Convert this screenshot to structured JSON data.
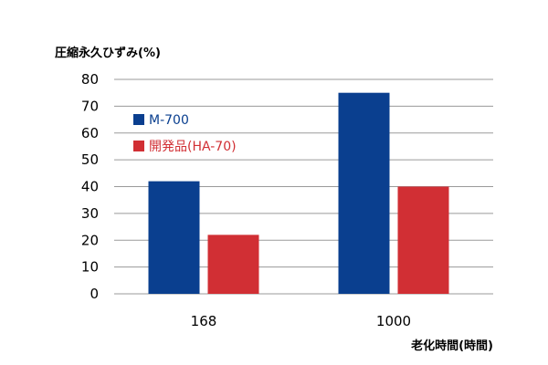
{
  "chart_data": {
    "type": "bar",
    "title": "",
    "ylabel": "圧縮永久ひずみ(%)",
    "xlabel": "老化時間(時間)",
    "categories": [
      "168",
      "1000"
    ],
    "ylim": [
      0,
      80
    ],
    "yticks": [
      0,
      10,
      20,
      30,
      40,
      50,
      60,
      70,
      80
    ],
    "grid": true,
    "legend_position": "top-left",
    "series": [
      {
        "name": "M-700",
        "color": "#0a3f8f",
        "values": [
          42,
          75
        ]
      },
      {
        "name": "開発品(HA-70)",
        "color": "#d12f34",
        "values": [
          22,
          40
        ]
      }
    ]
  }
}
